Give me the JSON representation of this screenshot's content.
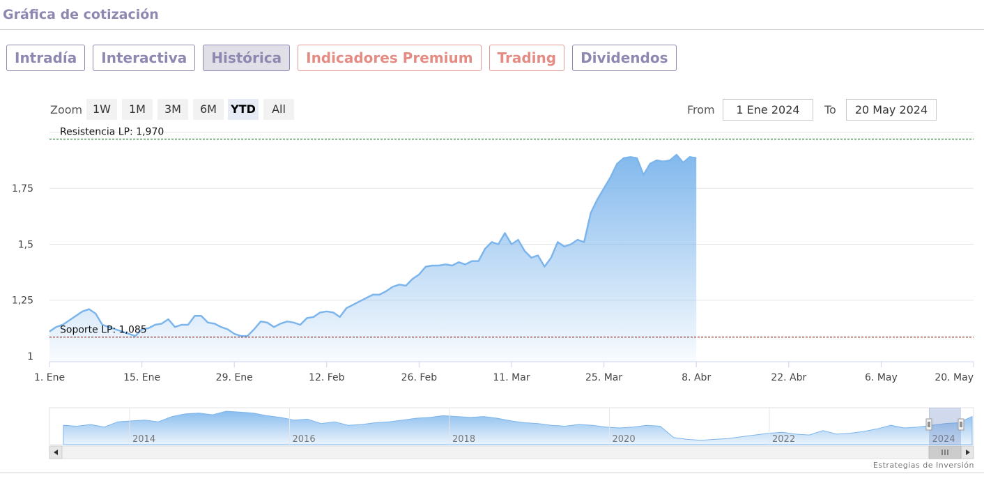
{
  "header": {
    "title": "Gráfica de cotización"
  },
  "tabs": [
    {
      "label": "Intradía"
    },
    {
      "label": "Interactiva"
    },
    {
      "label": "Histórica"
    },
    {
      "label": "Indicadores Premium"
    },
    {
      "label": "Trading"
    },
    {
      "label": "Dividendos"
    }
  ],
  "zoom": {
    "label": "Zoom",
    "buttons": [
      "1W",
      "1M",
      "3M",
      "6M",
      "YTD",
      "All"
    ],
    "selected": "YTD"
  },
  "range": {
    "from_label": "From",
    "from_value": "1 Ene 2024",
    "to_label": "To",
    "to_value": "20 May 2024"
  },
  "colors": {
    "line": "#7cb5ec",
    "accent": "#8e88b0",
    "alt_accent": "#e48b84",
    "resistance": "#2e7d32",
    "support": "#8b1a1a"
  },
  "chart_data": {
    "type": "area",
    "yticks": [
      1,
      1.25,
      1.5,
      1.75
    ],
    "ytick_labels": [
      "1",
      "1,25",
      "1,5",
      "1,75"
    ],
    "ylim": [
      0.975,
      2.0
    ],
    "xtick_labels": [
      "1. Ene",
      "15. Ene",
      "29. Ene",
      "12. Feb",
      "26. Feb",
      "11. Mar",
      "25. Mar",
      "8. Abr",
      "22. Abr",
      "6. May",
      "20. May"
    ],
    "xtick_days": [
      0,
      14,
      28,
      42,
      56,
      70,
      84,
      98,
      112,
      126,
      140
    ],
    "xlim_days": [
      0,
      140
    ],
    "x_start_date": "2024-01-01",
    "reference_lines": [
      {
        "label": "Resistencia LP: 1,970",
        "value": 1.97
      },
      {
        "label": "Soporte LP: 1,085",
        "value": 1.085
      }
    ],
    "series": [
      {
        "name": "",
        "points": [
          [
            0,
            1.11
          ],
          [
            1,
            1.13
          ],
          [
            2,
            1.14
          ],
          [
            3,
            1.16
          ],
          [
            4,
            1.18
          ],
          [
            5,
            1.2
          ],
          [
            6,
            1.21
          ],
          [
            7,
            1.19
          ],
          [
            8,
            1.14
          ],
          [
            9,
            1.13
          ],
          [
            10,
            1.12
          ],
          [
            11,
            1.11
          ],
          [
            12,
            1.1
          ],
          [
            13,
            1.09
          ],
          [
            14,
            1.12
          ],
          [
            15,
            1.125
          ],
          [
            16,
            1.14
          ],
          [
            17,
            1.145
          ],
          [
            18,
            1.165
          ],
          [
            19,
            1.13
          ],
          [
            20,
            1.14
          ],
          [
            21,
            1.14
          ],
          [
            22,
            1.18
          ],
          [
            23,
            1.18
          ],
          [
            24,
            1.15
          ],
          [
            25,
            1.145
          ],
          [
            26,
            1.13
          ],
          [
            27,
            1.12
          ],
          [
            28,
            1.1
          ],
          [
            29,
            1.09
          ],
          [
            30,
            1.09
          ],
          [
            31,
            1.12
          ],
          [
            32,
            1.155
          ],
          [
            33,
            1.15
          ],
          [
            34,
            1.13
          ],
          [
            35,
            1.145
          ],
          [
            36,
            1.155
          ],
          [
            37,
            1.15
          ],
          [
            38,
            1.14
          ],
          [
            39,
            1.17
          ],
          [
            40,
            1.175
          ],
          [
            41,
            1.195
          ],
          [
            42,
            1.2
          ],
          [
            43,
            1.195
          ],
          [
            44,
            1.175
          ],
          [
            45,
            1.215
          ],
          [
            46,
            1.23
          ],
          [
            47,
            1.245
          ],
          [
            48,
            1.26
          ],
          [
            49,
            1.275
          ],
          [
            50,
            1.275
          ],
          [
            51,
            1.29
          ],
          [
            52,
            1.31
          ],
          [
            53,
            1.32
          ],
          [
            54,
            1.315
          ],
          [
            55,
            1.345
          ],
          [
            56,
            1.365
          ],
          [
            57,
            1.4
          ],
          [
            58,
            1.405
          ],
          [
            59,
            1.405
          ],
          [
            60,
            1.41
          ],
          [
            61,
            1.405
          ],
          [
            62,
            1.42
          ],
          [
            63,
            1.41
          ],
          [
            64,
            1.425
          ],
          [
            65,
            1.425
          ],
          [
            66,
            1.48
          ],
          [
            67,
            1.51
          ],
          [
            68,
            1.5
          ],
          [
            69,
            1.55
          ],
          [
            70,
            1.5
          ],
          [
            71,
            1.52
          ],
          [
            72,
            1.47
          ],
          [
            73,
            1.44
          ],
          [
            74,
            1.45
          ],
          [
            75,
            1.4
          ],
          [
            76,
            1.44
          ],
          [
            77,
            1.51
          ],
          [
            78,
            1.49
          ],
          [
            79,
            1.5
          ],
          [
            80,
            1.52
          ],
          [
            81,
            1.51
          ],
          [
            82,
            1.64
          ],
          [
            83,
            1.7
          ],
          [
            84,
            1.75
          ],
          [
            85,
            1.8
          ],
          [
            86,
            1.86
          ],
          [
            87,
            1.885
          ],
          [
            88,
            1.89
          ],
          [
            89,
            1.885
          ],
          [
            90,
            1.81
          ],
          [
            91,
            1.86
          ],
          [
            92,
            1.875
          ],
          [
            93,
            1.87
          ],
          [
            94,
            1.875
          ],
          [
            95,
            1.9
          ],
          [
            96,
            1.865
          ],
          [
            97,
            1.89
          ],
          [
            98,
            1.885
          ]
        ]
      }
    ],
    "navigator": {
      "xtick_labels": [
        "2014",
        "2016",
        "2018",
        "2020",
        "2022",
        "2024"
      ],
      "values": [
        1.9,
        1.85,
        1.95,
        1.8,
        2.1,
        2.15,
        2.2,
        2.1,
        2.4,
        2.55,
        2.6,
        2.5,
        2.7,
        2.65,
        2.6,
        2.45,
        2.35,
        2.2,
        2.25,
        2.0,
        2.1,
        1.9,
        1.95,
        2.05,
        2.1,
        2.2,
        2.3,
        2.35,
        2.45,
        2.4,
        2.35,
        2.4,
        2.3,
        2.15,
        2.05,
        2.0,
        1.9,
        1.85,
        1.95,
        1.9,
        1.8,
        1.75,
        1.8,
        1.9,
        1.85,
        1.2,
        1.1,
        1.05,
        1.1,
        1.15,
        1.25,
        1.35,
        1.45,
        1.5,
        1.4,
        1.35,
        1.6,
        1.4,
        1.45,
        1.55,
        1.7,
        1.9,
        1.75,
        1.8,
        1.9,
        2.0,
        2.05,
        2.4
      ]
    }
  },
  "navigator": {
    "scroll_handle_icon": "grip-lines-icon",
    "left_arrow_icon": "arrow-left-icon",
    "right_arrow_icon": "arrow-right-icon"
  },
  "credit": "Estrategias de Inversión"
}
